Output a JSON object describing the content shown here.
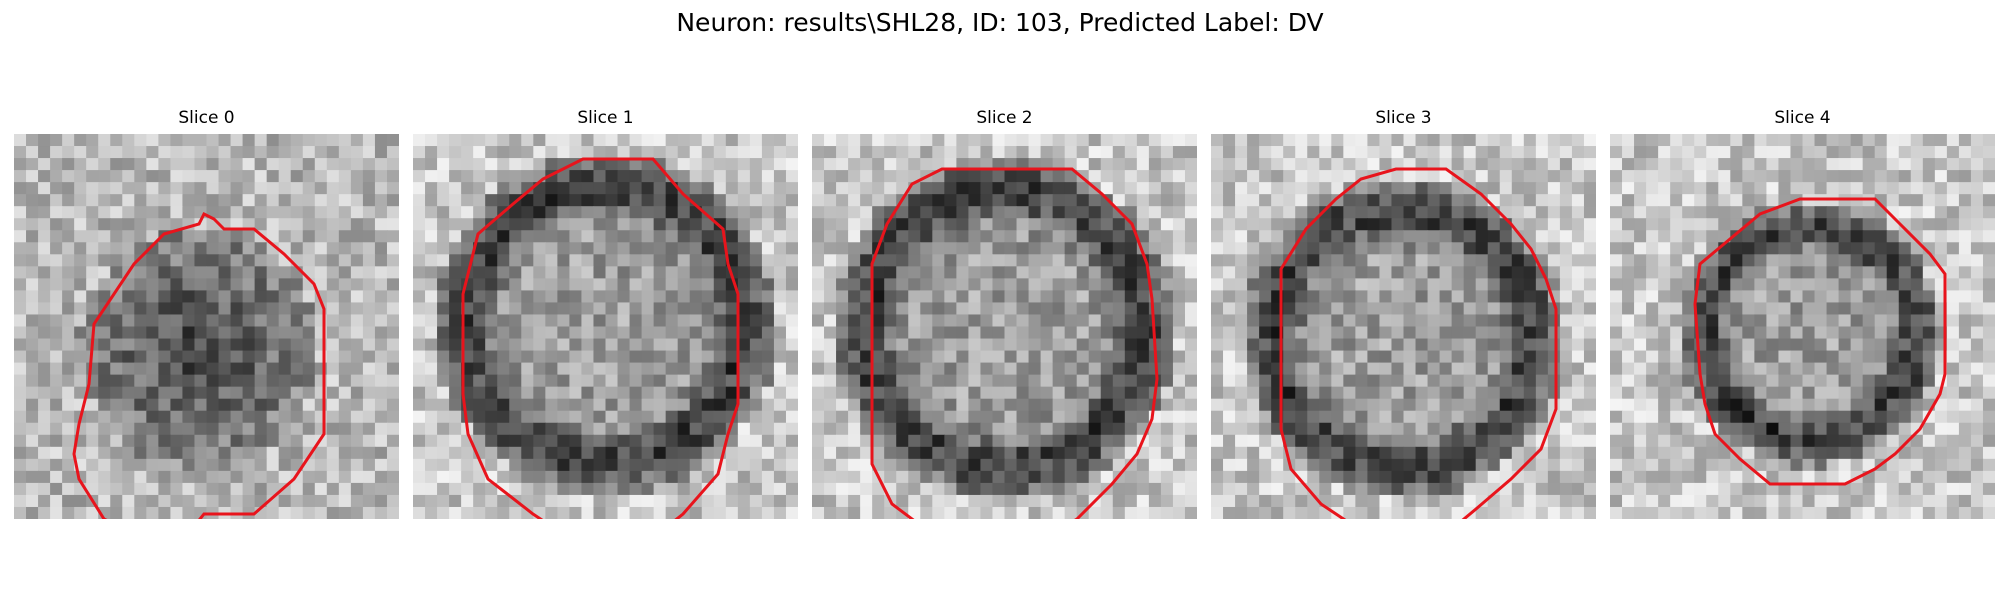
{
  "figure": {
    "title": "Neuron: results\\SHL28, ID: 103, Predicted Label: DV"
  },
  "panels": [
    {
      "title": "Slice 0"
    },
    {
      "title": "Slice 1"
    },
    {
      "title": "Slice 2"
    },
    {
      "title": "Slice 3"
    },
    {
      "title": "Slice 4"
    }
  ],
  "colors": {
    "contour": "#e8141c"
  }
}
